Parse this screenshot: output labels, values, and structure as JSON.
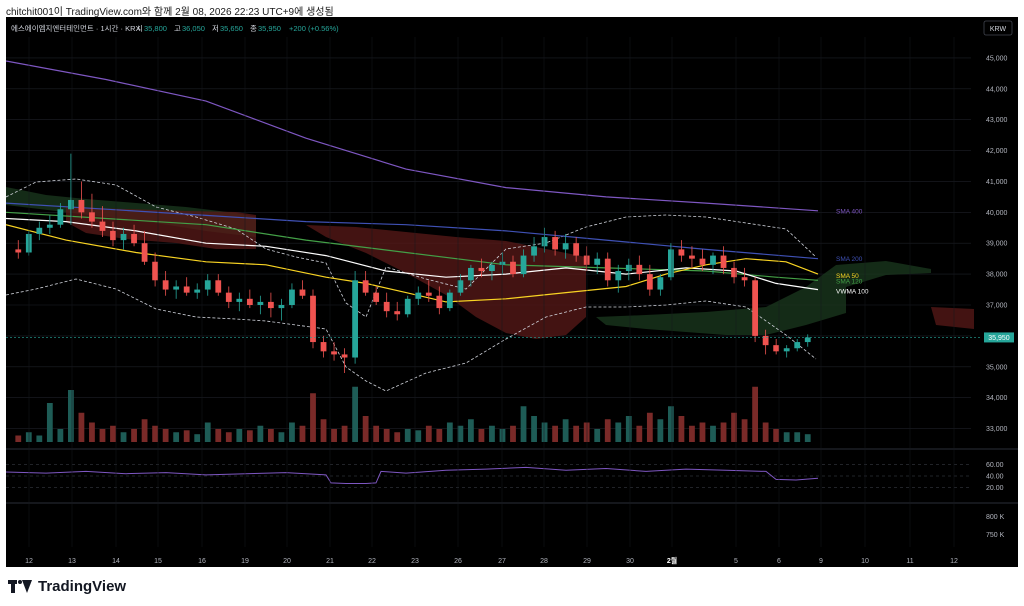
{
  "header": {
    "text": "chitchit001이 TradingView.com와 함께 2월 08, 2026 22:23 UTC+9에 생성됨"
  },
  "symbol": {
    "title": "에스에이엠지엔터테인먼트 · 1시간 · KRX",
    "o_label": "시",
    "o": "35,800",
    "h_label": "고",
    "h": "36,050",
    "l_label": "저",
    "l": "35,650",
    "c_label": "종",
    "c": "35,950",
    "change": "+200 (+0.56%)"
  },
  "currency_badge": "KRW",
  "last_price_label": "35,950",
  "footer": {
    "logo_text": "TradingView"
  },
  "colors": {
    "up": "#26a69a",
    "down": "#ef5350",
    "background": "#000000",
    "sma400": "#7e57c2",
    "sma200": "#3f51b5",
    "sma50": "#f9d423",
    "sma120": "#43a047",
    "vwma100": "#ffffff",
    "kumo_bull": "#1b3a1f",
    "kumo_bear": "#5a1a18",
    "rsi": "#7e57c2"
  },
  "chart_data": {
    "type": "candlestick",
    "interval": "1시간",
    "price_axis": {
      "range": [
        32500,
        46000
      ],
      "ticks": [
        "45,000",
        "44,000",
        "43,000",
        "42,000",
        "41,000",
        "40,000",
        "39,000",
        "38,000",
        "37,000",
        "36,000",
        "35,000",
        "34,000",
        "33,000"
      ]
    },
    "x_axis": {
      "ticks": [
        "12",
        "13",
        "14",
        "15",
        "16",
        "19",
        "20",
        "21",
        "22",
        "23",
        "26",
        "27",
        "28",
        "29",
        "30",
        "2월",
        "5",
        "6",
        "9",
        "10",
        "11",
        "12"
      ]
    },
    "candles": [
      [
        38800,
        39100,
        38500,
        38700
      ],
      [
        38700,
        39400,
        38600,
        39300
      ],
      [
        39300,
        39700,
        39100,
        39500
      ],
      [
        39500,
        39900,
        39300,
        39600
      ],
      [
        39600,
        40300,
        39500,
        40100
      ],
      [
        40100,
        41900,
        39600,
        40400
      ],
      [
        40400,
        41000,
        39800,
        40000
      ],
      [
        40000,
        40600,
        39500,
        39700
      ],
      [
        39700,
        40200,
        39200,
        39400
      ],
      [
        39400,
        39700,
        38900,
        39100
      ],
      [
        39100,
        39500,
        38800,
        39300
      ],
      [
        39300,
        39600,
        38900,
        39000
      ],
      [
        39000,
        39400,
        38300,
        38400
      ],
      [
        38400,
        38700,
        37600,
        37800
      ],
      [
        37800,
        38100,
        37300,
        37500
      ],
      [
        37500,
        37800,
        37200,
        37600
      ],
      [
        37600,
        37900,
        37300,
        37400
      ],
      [
        37400,
        37700,
        37200,
        37500
      ],
      [
        37500,
        38000,
        37300,
        37800
      ],
      [
        37800,
        38000,
        37300,
        37400
      ],
      [
        37400,
        37600,
        36900,
        37100
      ],
      [
        37100,
        37400,
        36800,
        37200
      ],
      [
        37200,
        37500,
        36900,
        37000
      ],
      [
        37000,
        37300,
        36700,
        37100
      ],
      [
        37100,
        37400,
        36600,
        36900
      ],
      [
        36900,
        37200,
        36500,
        37000
      ],
      [
        37000,
        37700,
        36900,
        37500
      ],
      [
        37500,
        37800,
        37200,
        37300
      ],
      [
        37300,
        37500,
        35600,
        35800
      ],
      [
        35800,
        36000,
        35300,
        35500
      ],
      [
        35500,
        35800,
        35200,
        35400
      ],
      [
        35400,
        35600,
        34800,
        35300
      ],
      [
        35300,
        38100,
        35100,
        37800
      ],
      [
        37800,
        38100,
        37300,
        37400
      ],
      [
        37400,
        37600,
        37000,
        37100
      ],
      [
        37100,
        37400,
        36600,
        36800
      ],
      [
        36800,
        37100,
        36500,
        36700
      ],
      [
        36700,
        37300,
        36600,
        37200
      ],
      [
        37200,
        37600,
        37000,
        37400
      ],
      [
        37400,
        37800,
        37100,
        37300
      ],
      [
        37300,
        37600,
        36700,
        36900
      ],
      [
        36900,
        37500,
        36800,
        37400
      ],
      [
        37400,
        38000,
        37300,
        37800
      ],
      [
        37800,
        38300,
        37600,
        38200
      ],
      [
        38200,
        38500,
        37900,
        38100
      ],
      [
        38100,
        38400,
        37800,
        38300
      ],
      [
        38300,
        38700,
        38000,
        38400
      ],
      [
        38400,
        38600,
        37900,
        38000
      ],
      [
        38000,
        38800,
        37900,
        38600
      ],
      [
        38600,
        39200,
        38400,
        38900
      ],
      [
        38900,
        39500,
        38700,
        39200
      ],
      [
        39200,
        39400,
        38600,
        38800
      ],
      [
        38800,
        39300,
        38500,
        39000
      ],
      [
        39000,
        39200,
        38400,
        38600
      ],
      [
        38600,
        38900,
        38100,
        38300
      ],
      [
        38300,
        38700,
        38000,
        38500
      ],
      [
        38500,
        38700,
        37600,
        37800
      ],
      [
        37800,
        38300,
        37400,
        38100
      ],
      [
        38100,
        38500,
        37800,
        38300
      ],
      [
        38300,
        38600,
        37800,
        38000
      ],
      [
        38000,
        38300,
        37300,
        37500
      ],
      [
        37500,
        38000,
        37300,
        37900
      ],
      [
        37900,
        39000,
        37800,
        38800
      ],
      [
        38800,
        39100,
        38400,
        38600
      ],
      [
        38600,
        38900,
        38200,
        38500
      ],
      [
        38500,
        38800,
        38100,
        38300
      ],
      [
        38300,
        38700,
        38000,
        38600
      ],
      [
        38600,
        38900,
        38000,
        38200
      ],
      [
        38200,
        38400,
        37700,
        37900
      ],
      [
        37900,
        38200,
        37600,
        37800
      ],
      [
        37800,
        37900,
        35800,
        36000
      ],
      [
        36000,
        36200,
        35400,
        35700
      ],
      [
        35700,
        35900,
        35400,
        35500
      ],
      [
        35500,
        35700,
        35300,
        35600
      ],
      [
        35600,
        35900,
        35500,
        35800
      ],
      [
        35800,
        36050,
        35650,
        35950
      ]
    ],
    "volume_note": "volume shown as bars in lower band",
    "indicators": [
      {
        "name": "SMA 400",
        "color": "#7e57c2"
      },
      {
        "name": "SMA 200",
        "color": "#3f51b5"
      },
      {
        "name": "SMA 50",
        "color": "#f9d423"
      },
      {
        "name": "SMA 120",
        "color": "#43a047"
      },
      {
        "name": "VWMA 100",
        "color": "#ffffff"
      }
    ],
    "rsi": {
      "levels": [
        "60.00",
        "40.00",
        "20.00"
      ],
      "value_end": 40
    },
    "volume_axis": [
      "800 K",
      "750 K"
    ]
  }
}
